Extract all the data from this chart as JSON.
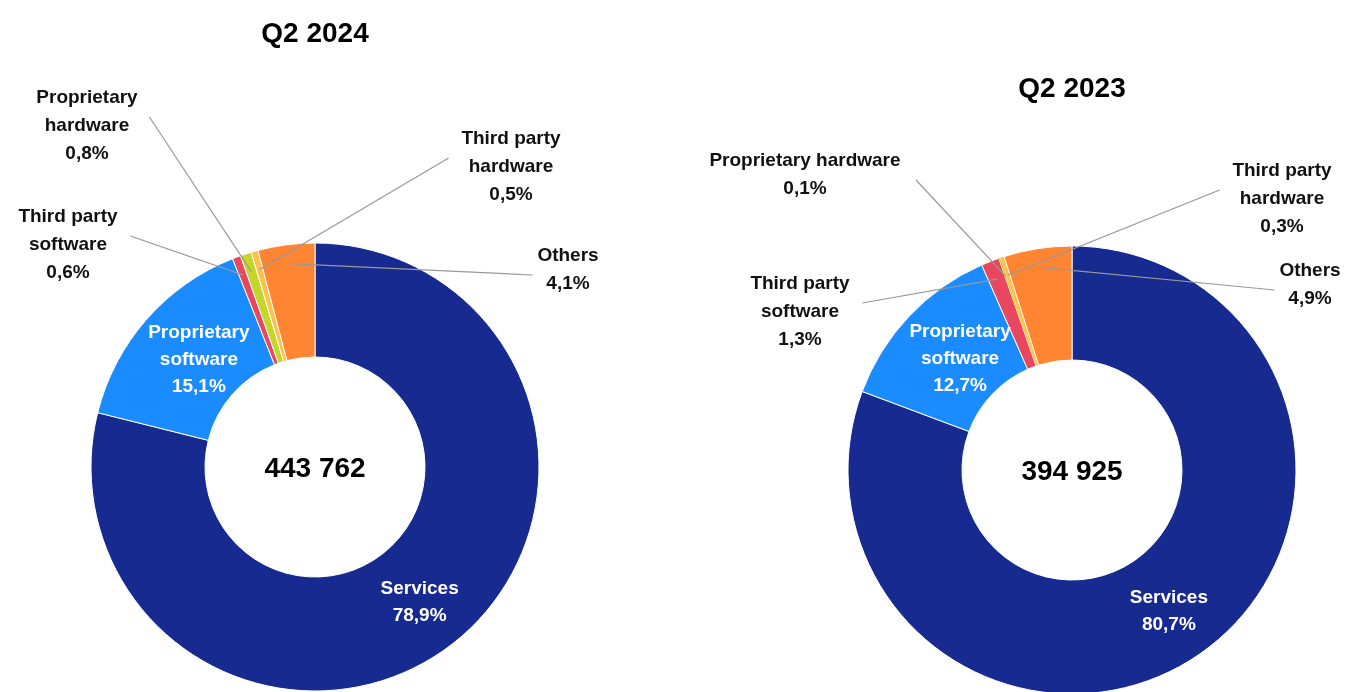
{
  "chart_data": [
    {
      "type": "donut",
      "title": "Q2 2024",
      "categories": [
        "Services",
        "Proprietary software",
        "Third party software",
        "Proprietary hardware",
        "Third party hardware",
        "Others"
      ],
      "values": [
        78.9,
        15.1,
        0.6,
        0.8,
        0.5,
        4.1
      ],
      "value_labels": [
        "78,9%",
        "15,1%",
        "0,6%",
        "0,8%",
        "0,5%",
        "4,1%"
      ],
      "colors": [
        "#172a8f",
        "#1a8cff",
        "#e8475f",
        "#c5d62a",
        "#ffc04d",
        "#ff8533"
      ],
      "annotations": [
        "443 762"
      ]
    },
    {
      "type": "donut",
      "title": "Q2 2023",
      "categories": [
        "Services",
        "Proprietary software",
        "Third party software",
        "Proprietary hardware",
        "Third party hardware",
        "Others"
      ],
      "values": [
        80.7,
        12.7,
        1.3,
        0.1,
        0.3,
        4.9
      ],
      "value_labels": [
        "80,7%",
        "12,7%",
        "1,3%",
        "0,1%",
        "0,3%",
        "4,9%"
      ],
      "colors": [
        "#172a8f",
        "#1a8cff",
        "#e8475f",
        "#c5d62a",
        "#ffc04d",
        "#ff8533"
      ],
      "annotations": [
        "394 925"
      ]
    }
  ]
}
